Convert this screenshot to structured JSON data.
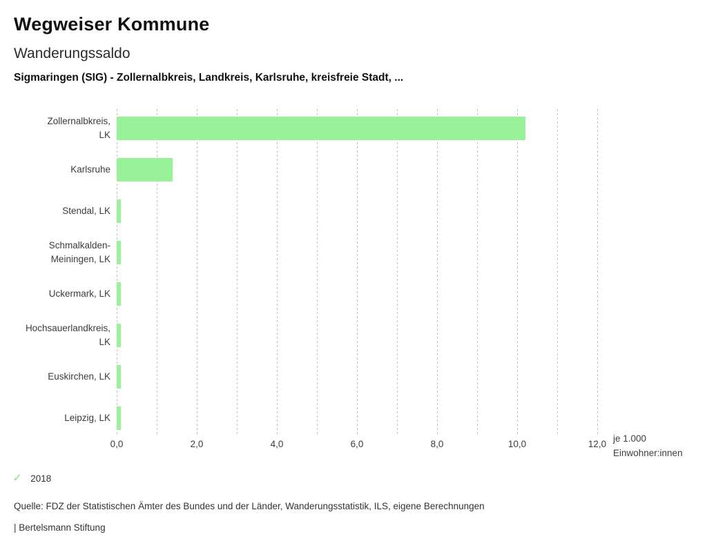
{
  "page": {
    "title": "Wegweiser Kommune",
    "subtitle": "Wanderungssaldo",
    "description": "Sigmaringen (SIG) - Zollernalbkreis, Landkreis, Karlsruhe, kreisfreie Stadt, ...",
    "source": "Quelle: FDZ der Statistischen Ämter des Bundes und der Länder, Wanderungsstatistik, ILS, eigene Berechnungen",
    "branding": "| Bertelsmann Stiftung"
  },
  "legend": {
    "check_glyph": "✓",
    "year": "2018",
    "check_color": "#8fe18f"
  },
  "axis": {
    "unit_line1": "je 1.000",
    "unit_line2": "Einwohner:innen",
    "tick_labels": [
      "0,0",
      "2,0",
      "4,0",
      "6,0",
      "8,0",
      "10,0",
      "12,0"
    ]
  },
  "chart_data": {
    "type": "bar",
    "orientation": "horizontal",
    "title": "Wanderungssaldo",
    "subtitle": "Sigmaringen (SIG) - Zollernalbkreis, Landkreis, Karlsruhe, kreisfreie Stadt, ...",
    "categories": [
      "Zollernalbkreis, LK",
      "Karlsruhe",
      "Stendal, LK",
      "Schmalkalden-Meiningen, LK",
      "Uckermark, LK",
      "Hochsauerlandkreis, LK",
      "Euskirchen, LK",
      "Leipzig, LK"
    ],
    "category_lines": [
      [
        "Zollernalbkreis,",
        "LK"
      ],
      [
        "Karlsruhe"
      ],
      [
        "Stendal, LK"
      ],
      [
        "Schmalkalden-",
        "Meiningen, LK"
      ],
      [
        "Uckermark, LK"
      ],
      [
        "Hochsauerlandkreis,",
        "LK"
      ],
      [
        "Euskirchen, LK"
      ],
      [
        "Leipzig, LK"
      ]
    ],
    "series": [
      {
        "name": "2018",
        "values": [
          10.2,
          1.4,
          0.1,
          0.1,
          0.1,
          0.1,
          0.1,
          0.1
        ]
      }
    ],
    "xlabel": "je 1.000 Einwohner:innen",
    "xlim": [
      0,
      12
    ],
    "x_major_tick": 2.0,
    "x_minor_tick": 1.0,
    "grid": "vertical dotted",
    "legend_position": "bottom-left",
    "bar_color": "#98f298",
    "grid_color": "#c3c3c3",
    "decimal_format": "de-comma"
  }
}
